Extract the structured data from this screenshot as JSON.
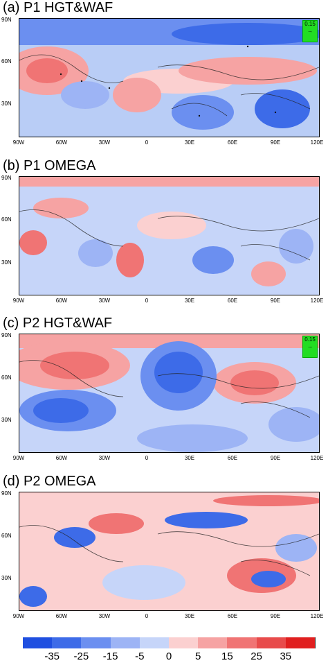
{
  "panels": [
    {
      "title": "(a) P1 HGT&WAF",
      "ref_vector": "0.15"
    },
    {
      "title": "(b) P1 OMEGA"
    },
    {
      "title": "(c) P2 HGT&WAF",
      "ref_vector": "0.15"
    },
    {
      "title": "(d) P2 OMEGA"
    }
  ],
  "lat_ticks": [
    "90N",
    "60N",
    "30N"
  ],
  "lon_ticks": [
    "90W",
    "60W",
    "30W",
    "0",
    "30E",
    "60E",
    "90E",
    "120E"
  ],
  "colorbar": {
    "labels": [
      "-35",
      "-25",
      "-15",
      "-5",
      "0",
      "5",
      "15",
      "25",
      "35"
    ],
    "colors": [
      "#1f4fe0",
      "#3d6be8",
      "#6b8ff0",
      "#9db4f5",
      "#c6d5f9",
      "#fbd0d0",
      "#f6a3a3",
      "#f07474",
      "#e84b4b",
      "#e01f1f"
    ]
  }
}
